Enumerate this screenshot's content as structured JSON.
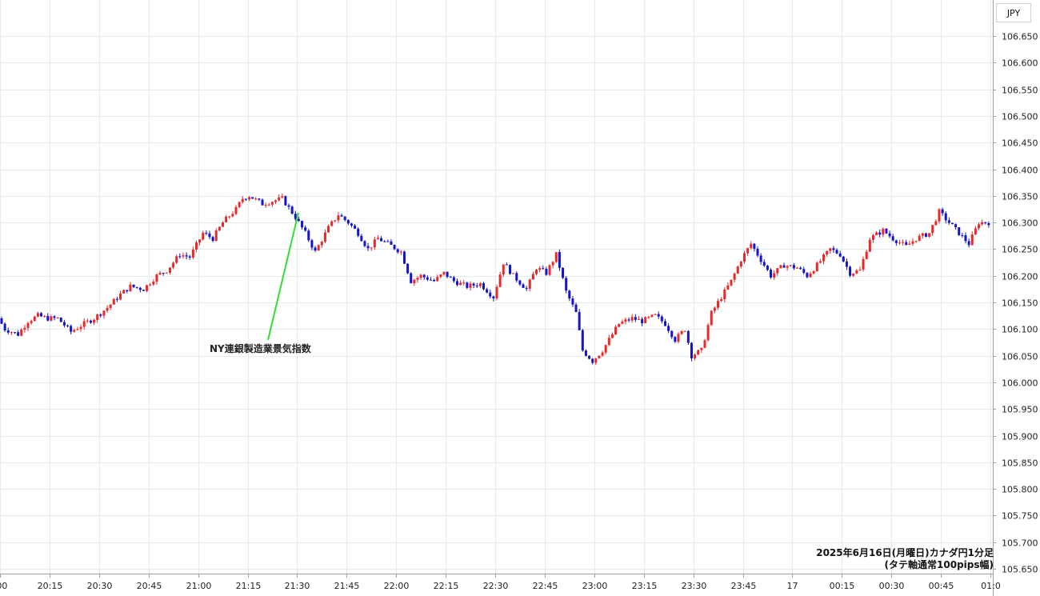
{
  "currency_label": "JPY",
  "caption": {
    "line1": "2025年6月16日(月曜日)カナダ円1分足",
    "line2": "(タテ軸通常100pips幅)"
  },
  "annotation": {
    "text": "NY連銀製造業景気指数",
    "time": "21:30",
    "price": 106.31,
    "color": "#33dd33"
  },
  "colors": {
    "up": "#e8282b",
    "down": "#1414c8",
    "grid": "#e3ecef"
  },
  "chart_data": {
    "type": "candlestick",
    "timeframe": "1 minute",
    "ylim": [
      105.65,
      106.67
    ],
    "y_ticks": [
      "106.650",
      "106.600",
      "106.550",
      "106.500",
      "106.450",
      "106.400",
      "106.350",
      "106.300",
      "106.250",
      "106.200",
      "106.150",
      "106.100",
      "106.050",
      "106.000",
      "105.950",
      "105.900",
      "105.850",
      "105.800",
      "105.750",
      "105.700",
      "105.650"
    ],
    "x_ticks": [
      ":00",
      "20:15",
      "20:30",
      "20:45",
      "21:00",
      "21:15",
      "21:30",
      "21:45",
      "22:00",
      "22:15",
      "22:30",
      "22:45",
      "23:00",
      "23:15",
      "23:30",
      "23:45",
      "17",
      "00:15",
      "00:30",
      "00:45",
      "01:0"
    ],
    "path_anchors": [
      [
        "20:00",
        106.12
      ],
      [
        "20:02",
        106.1
      ],
      [
        "20:06",
        106.09
      ],
      [
        "20:09",
        106.115
      ],
      [
        "20:12",
        106.125
      ],
      [
        "20:15",
        106.12
      ],
      [
        "20:18",
        106.12
      ],
      [
        "20:22",
        106.095
      ],
      [
        "20:26",
        106.11
      ],
      [
        "20:29",
        106.12
      ],
      [
        "20:33",
        106.14
      ],
      [
        "20:37",
        106.165
      ],
      [
        "20:40",
        106.18
      ],
      [
        "20:44",
        106.175
      ],
      [
        "20:48",
        106.2
      ],
      [
        "20:51",
        106.21
      ],
      [
        "20:55",
        106.24
      ],
      [
        "20:58",
        106.235
      ],
      [
        "21:02",
        106.28
      ],
      [
        "21:05",
        106.27
      ],
      [
        "21:08",
        106.3
      ],
      [
        "21:12",
        106.325
      ],
      [
        "21:14",
        106.345
      ],
      [
        "21:16",
        106.35
      ],
      [
        "21:20",
        106.335
      ],
      [
        "21:23",
        106.34
      ],
      [
        "21:26",
        106.345
      ],
      [
        "21:30",
        106.31
      ],
      [
        "21:33",
        106.28
      ],
      [
        "21:36",
        106.245
      ],
      [
        "21:40",
        106.29
      ],
      [
        "21:43",
        106.315
      ],
      [
        "21:46",
        106.3
      ],
      [
        "21:49",
        106.28
      ],
      [
        "21:52",
        106.25
      ],
      [
        "21:55",
        106.27
      ],
      [
        "21:58",
        106.26
      ],
      [
        "22:02",
        106.245
      ],
      [
        "22:05",
        106.19
      ],
      [
        "22:08",
        106.2
      ],
      [
        "22:12",
        106.19
      ],
      [
        "22:15",
        106.205
      ],
      [
        "22:18",
        106.19
      ],
      [
        "22:22",
        106.18
      ],
      [
        "22:26",
        106.185
      ],
      [
        "22:30",
        106.16
      ],
      [
        "22:33",
        106.225
      ],
      [
        "22:36",
        106.2
      ],
      [
        "22:40",
        106.175
      ],
      [
        "22:43",
        106.215
      ],
      [
        "22:46",
        106.205
      ],
      [
        "22:49",
        106.24
      ],
      [
        "22:52",
        106.17
      ],
      [
        "22:55",
        106.13
      ],
      [
        "22:57",
        106.06
      ],
      [
        "23:00",
        106.04
      ],
      [
        "23:03",
        106.06
      ],
      [
        "23:05",
        106.08
      ],
      [
        "23:08",
        106.11
      ],
      [
        "23:12",
        106.12
      ],
      [
        "23:15",
        106.115
      ],
      [
        "23:19",
        106.125
      ],
      [
        "23:22",
        106.11
      ],
      [
        "23:25",
        106.08
      ],
      [
        "23:28",
        106.1
      ],
      [
        "23:30",
        106.05
      ],
      [
        "23:33",
        106.06
      ],
      [
        "23:36",
        106.13
      ],
      [
        "23:39",
        106.16
      ],
      [
        "23:42",
        106.19
      ],
      [
        "23:45",
        106.23
      ],
      [
        "23:48",
        106.26
      ],
      [
        "23:51",
        106.23
      ],
      [
        "23:54",
        106.2
      ],
      [
        "23:58",
        106.22
      ],
      [
        "00:02",
        106.215
      ],
      [
        "00:05",
        106.2
      ],
      [
        "00:08",
        106.22
      ],
      [
        "00:12",
        106.25
      ],
      [
        "00:15",
        106.24
      ],
      [
        "00:18",
        106.205
      ],
      [
        "00:21",
        106.21
      ],
      [
        "00:24",
        106.27
      ],
      [
        "00:28",
        106.285
      ],
      [
        "00:31",
        106.27
      ],
      [
        "00:35",
        106.255
      ],
      [
        "00:38",
        106.27
      ],
      [
        "00:42",
        106.28
      ],
      [
        "00:45",
        106.32
      ],
      [
        "00:48",
        106.3
      ],
      [
        "00:51",
        106.28
      ],
      [
        "00:54",
        106.26
      ],
      [
        "00:57",
        106.3
      ],
      [
        "01:00",
        106.3
      ]
    ]
  }
}
